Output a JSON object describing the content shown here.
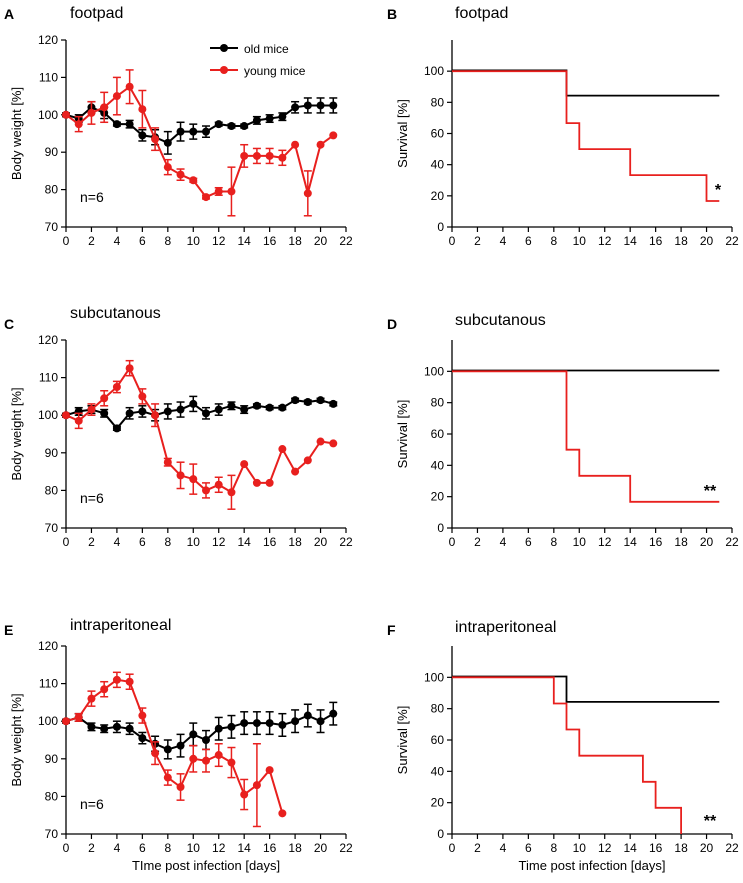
{
  "colors": {
    "old": "#000000",
    "young": "#e8201e"
  },
  "legend": {
    "old": "old mice",
    "young": "young mice"
  },
  "chart_data": [
    {
      "id": "A",
      "type": "line",
      "title": "footpad",
      "ylabel": "Body weight  [%]",
      "xlabel": "",
      "xlim": [
        0,
        22
      ],
      "ylim": [
        70,
        120
      ],
      "xticks": [
        0,
        2,
        4,
        6,
        8,
        10,
        12,
        14,
        16,
        18,
        20,
        22
      ],
      "yticks": [
        70,
        80,
        90,
        100,
        110,
        120
      ],
      "annotation": "n=6",
      "series": [
        {
          "name": "old mice",
          "color_key": "old",
          "x": [
            0,
            1,
            2,
            3,
            4,
            5,
            6,
            7,
            8,
            9,
            10,
            11,
            12,
            13,
            14,
            15,
            16,
            17,
            18,
            19,
            20,
            21
          ],
          "y": [
            100,
            99,
            102,
            100.5,
            97.5,
            97.5,
            94.5,
            94,
            92.5,
            95.5,
            95.5,
            95.5,
            97.5,
            97,
            97,
            98.5,
            99,
            99.5,
            102,
            102.5,
            102.5,
            102.5
          ],
          "err": [
            0.5,
            1,
            1.5,
            1.5,
            0.5,
            1,
            1.5,
            2,
            3,
            2.5,
            2,
            1.5,
            0.5,
            0.5,
            0.5,
            1,
            1,
            1,
            1.5,
            2,
            2,
            2
          ]
        },
        {
          "name": "young mice",
          "color_key": "young",
          "x": [
            0,
            1,
            2,
            3,
            4,
            5,
            6,
            7,
            8,
            9,
            10,
            11,
            12,
            13,
            14,
            15,
            16,
            17,
            18,
            19,
            20,
            21
          ],
          "y": [
            100,
            97.5,
            100.5,
            102,
            105,
            107.5,
            101.5,
            93.5,
            86,
            84,
            82.5,
            78,
            79.5,
            79.5,
            89,
            89,
            89,
            88.5,
            92,
            79,
            92,
            94.5
          ],
          "err": [
            0,
            2,
            3,
            4,
            5,
            4.5,
            5,
            3,
            2,
            1.5,
            0.5,
            0.5,
            1,
            6.5,
            3,
            2,
            2,
            2,
            0,
            6,
            0,
            0
          ]
        }
      ]
    },
    {
      "id": "B",
      "type": "line",
      "title": "footpad",
      "ylabel": "Survival  [%]",
      "xlabel": "",
      "xlim": [
        0,
        22
      ],
      "ylim": [
        0,
        120
      ],
      "xticks": [
        0,
        2,
        4,
        6,
        8,
        10,
        12,
        14,
        16,
        18,
        20,
        22
      ],
      "yticks": [
        0,
        20,
        40,
        60,
        80,
        100
      ],
      "annotation": "*",
      "series": [
        {
          "name": "old mice",
          "color_key": "old",
          "x": [
            0,
            9,
            9,
            21
          ],
          "y": [
            100.5,
            100.5,
            84.3,
            84.3
          ]
        },
        {
          "name": "young mice",
          "color_key": "young",
          "x": [
            0,
            9,
            9,
            10,
            10,
            14,
            14,
            20,
            20,
            21
          ],
          "y": [
            100,
            100,
            66.7,
            66.7,
            50,
            50,
            33.3,
            33.3,
            16.7,
            16.7
          ]
        }
      ]
    },
    {
      "id": "C",
      "type": "line",
      "title": "subcutanous",
      "ylabel": "Body weight  [%]",
      "xlabel": "",
      "xlim": [
        0,
        22
      ],
      "ylim": [
        70,
        120
      ],
      "xticks": [
        0,
        2,
        4,
        6,
        8,
        10,
        12,
        14,
        16,
        18,
        20,
        22
      ],
      "yticks": [
        70,
        80,
        90,
        100,
        110,
        120
      ],
      "annotation": "n=6",
      "series": [
        {
          "name": "old mice",
          "color_key": "old",
          "x": [
            0,
            1,
            2,
            3,
            4,
            5,
            6,
            7,
            8,
            9,
            10,
            11,
            12,
            13,
            14,
            15,
            16,
            17,
            18,
            19,
            20,
            21
          ],
          "y": [
            100,
            101,
            101.5,
            100.5,
            96.5,
            100.5,
            101,
            100,
            101,
            101.5,
            103,
            100.5,
            101.5,
            102.5,
            101.5,
            102.5,
            102,
            102,
            104,
            103.5,
            104,
            103
          ],
          "err": [
            0.5,
            1,
            1,
            1,
            0.5,
            1.5,
            1.5,
            1.5,
            2,
            2,
            2,
            1.5,
            1.5,
            1,
            1,
            0.5,
            0.5,
            0.5,
            0.5,
            0.5,
            0.5,
            0.5
          ]
        },
        {
          "name": "young mice",
          "color_key": "young",
          "x": [
            0,
            1,
            2,
            3,
            4,
            5,
            6,
            7,
            8,
            9,
            10,
            11,
            12,
            13,
            14,
            15,
            16,
            17,
            18,
            19,
            20,
            21
          ],
          "y": [
            100,
            98.5,
            101.5,
            104.5,
            107.5,
            112.5,
            105,
            100,
            87.5,
            84,
            83,
            80,
            81.5,
            79.5,
            87,
            82,
            82,
            91,
            85,
            88,
            93,
            92.5
          ],
          "err": [
            0,
            2,
            1.5,
            2,
            1.5,
            2,
            2,
            3,
            1,
            3.5,
            4,
            2,
            2,
            4.5,
            0,
            0,
            0,
            0,
            0,
            0,
            0,
            0
          ]
        }
      ]
    },
    {
      "id": "D",
      "type": "line",
      "title": "subcutanous",
      "ylabel": "Survival  [%]",
      "xlabel": "",
      "xlim": [
        0,
        22
      ],
      "ylim": [
        0,
        120
      ],
      "xticks": [
        0,
        2,
        4,
        6,
        8,
        10,
        12,
        14,
        16,
        18,
        20,
        22
      ],
      "yticks": [
        0,
        20,
        40,
        60,
        80,
        100
      ],
      "annotation": "**",
      "series": [
        {
          "name": "old mice",
          "color_key": "old",
          "x": [
            0,
            21
          ],
          "y": [
            100.5,
            100.5
          ]
        },
        {
          "name": "young mice",
          "color_key": "young",
          "x": [
            0,
            9,
            9,
            10,
            10,
            14,
            14,
            21
          ],
          "y": [
            100,
            100,
            50,
            50,
            33.3,
            33.3,
            16.7,
            16.7
          ]
        }
      ]
    },
    {
      "id": "E",
      "type": "line",
      "title": "intraperitoneal",
      "ylabel": "Body weight  [%]",
      "xlabel": "TIme post infection [days]",
      "xlim": [
        0,
        22
      ],
      "ylim": [
        70,
        120
      ],
      "xticks": [
        0,
        2,
        4,
        6,
        8,
        10,
        12,
        14,
        16,
        18,
        20,
        22
      ],
      "yticks": [
        70,
        80,
        90,
        100,
        110,
        120
      ],
      "annotation": "n=6",
      "series": [
        {
          "name": "old mice",
          "color_key": "old",
          "x": [
            0,
            1,
            2,
            3,
            4,
            5,
            6,
            7,
            8,
            9,
            10,
            11,
            12,
            13,
            14,
            15,
            16,
            17,
            18,
            19,
            20,
            21
          ],
          "y": [
            100,
            101,
            98.5,
            98,
            98.5,
            98,
            95.5,
            94,
            92.5,
            93.5,
            96.5,
            95,
            98,
            98.5,
            99.5,
            99.5,
            99.5,
            99,
            100,
            101.5,
            100,
            102
          ],
          "err": [
            0.5,
            1,
            1,
            1,
            1.5,
            1.5,
            1.5,
            2,
            2.5,
            3,
            3,
            2.5,
            3,
            3,
            3,
            3,
            3,
            3,
            3,
            3,
            3,
            3
          ]
        },
        {
          "name": "young mice",
          "color_key": "young",
          "x": [
            0,
            1,
            2,
            3,
            4,
            5,
            6,
            7,
            8,
            9,
            10,
            11,
            12,
            13,
            14,
            15,
            16,
            17
          ],
          "y": [
            100,
            101,
            106,
            108.5,
            111,
            110.5,
            101.5,
            91.5,
            85,
            82.5,
            90,
            89.5,
            91,
            89,
            80.5,
            83,
            87,
            75.5
          ],
          "err": [
            0,
            1,
            2,
            2,
            2,
            2,
            2,
            3,
            2,
            3.5,
            3.5,
            3,
            3,
            4,
            4,
            11,
            0,
            0
          ]
        }
      ]
    },
    {
      "id": "F",
      "type": "line",
      "title": "intraperitoneal",
      "ylabel": "Survival  [%]",
      "xlabel": "Time post infection [days]",
      "xlim": [
        0,
        22
      ],
      "ylim": [
        0,
        120
      ],
      "xticks": [
        0,
        2,
        4,
        6,
        8,
        10,
        12,
        14,
        16,
        18,
        20,
        22
      ],
      "yticks": [
        0,
        20,
        40,
        60,
        80,
        100
      ],
      "annotation": "**",
      "series": [
        {
          "name": "old mice",
          "color_key": "old",
          "x": [
            0,
            9,
            9,
            21
          ],
          "y": [
            100.5,
            100.5,
            84.3,
            84.3
          ]
        },
        {
          "name": "young mice",
          "color_key": "young",
          "x": [
            0,
            8,
            8,
            9,
            9,
            10,
            10,
            15,
            15,
            16,
            16,
            18,
            18
          ],
          "y": [
            100,
            100,
            83.3,
            83.3,
            66.7,
            66.7,
            50,
            50,
            33.3,
            33.3,
            16.7,
            16.7,
            0
          ]
        }
      ]
    }
  ]
}
